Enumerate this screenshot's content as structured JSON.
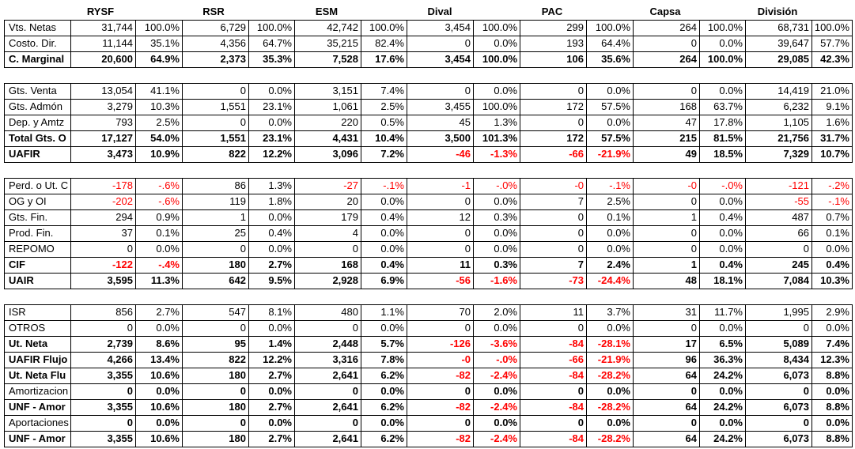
{
  "headers": [
    "RYSF",
    "RSR",
    "ESM",
    "Dival",
    "PAC",
    "Capsa",
    "División"
  ],
  "blocks": [
    {
      "rows": [
        {
          "label": "Vts. Netas",
          "bold": false,
          "values": [
            "31,744",
            "100.0%",
            "6,729",
            "100.0%",
            "42,742",
            "100.0%",
            "3,454",
            "100.0%",
            "299",
            "100.0%",
            "264",
            "100.0%",
            "68,731",
            "100.0%"
          ]
        },
        {
          "label": "Costo. Dir.",
          "bold": false,
          "values": [
            "11,144",
            "35.1%",
            "4,356",
            "64.7%",
            "35,215",
            "82.4%",
            "0",
            "0.0%",
            "193",
            "64.4%",
            "0",
            "0.0%",
            "39,647",
            "57.7%"
          ]
        },
        {
          "label": "C. Marginal",
          "bold": true,
          "values": [
            "20,600",
            "64.9%",
            "2,373",
            "35.3%",
            "7,528",
            "17.6%",
            "3,454",
            "100.0%",
            "106",
            "35.6%",
            "264",
            "100.0%",
            "29,085",
            "42.3%"
          ]
        }
      ]
    },
    {
      "rows": [
        {
          "label": "Gts. Venta",
          "bold": false,
          "values": [
            "13,054",
            "41.1%",
            "0",
            "0.0%",
            "3,151",
            "7.4%",
            "0",
            "0.0%",
            "0",
            "0.0%",
            "0",
            "0.0%",
            "14,419",
            "21.0%"
          ]
        },
        {
          "label": "Gts. Admón",
          "bold": false,
          "values": [
            "3,279",
            "10.3%",
            "1,551",
            "23.1%",
            "1,061",
            "2.5%",
            "3,455",
            "100.0%",
            "172",
            "57.5%",
            "168",
            "63.7%",
            "6,232",
            "9.1%"
          ]
        },
        {
          "label": "Dep. y Amtz",
          "bold": false,
          "values": [
            "793",
            "2.5%",
            "0",
            "0.0%",
            "220",
            "0.5%",
            "45",
            "1.3%",
            "0",
            "0.0%",
            "47",
            "17.8%",
            "1,105",
            "1.6%"
          ]
        },
        {
          "label": "Total Gts. O",
          "bold": true,
          "values": [
            "17,127",
            "54.0%",
            "1,551",
            "23.1%",
            "4,431",
            "10.4%",
            "3,500",
            "101.3%",
            "172",
            "57.5%",
            "215",
            "81.5%",
            "21,756",
            "31.7%"
          ]
        },
        {
          "label": "UAFIR",
          "bold": true,
          "values": [
            "3,473",
            "10.9%",
            "822",
            "12.2%",
            "3,096",
            "7.2%",
            "-46",
            "-1.3%",
            "-66",
            "-21.9%",
            "49",
            "18.5%",
            "7,329",
            "10.7%"
          ]
        }
      ]
    },
    {
      "rows": [
        {
          "label": "Perd. o Ut. C",
          "bold": false,
          "values": [
            "-178",
            "-.6%",
            "86",
            "1.3%",
            "-27",
            "-.1%",
            "-1",
            "-.0%",
            "-0",
            "-.1%",
            "-0",
            "-.0%",
            "-121",
            "-.2%"
          ]
        },
        {
          "label": "OG y OI",
          "bold": false,
          "values": [
            "-202",
            "-.6%",
            "119",
            "1.8%",
            "20",
            "0.0%",
            "0",
            "0.0%",
            "7",
            "2.5%",
            "0",
            "0.0%",
            "-55",
            "-.1%"
          ]
        },
        {
          "label": "Gts. Fin.",
          "bold": false,
          "values": [
            "294",
            "0.9%",
            "1",
            "0.0%",
            "179",
            "0.4%",
            "12",
            "0.3%",
            "0",
            "0.1%",
            "1",
            "0.4%",
            "487",
            "0.7%"
          ]
        },
        {
          "label": "Prod. Fin.",
          "bold": false,
          "values": [
            "37",
            "0.1%",
            "25",
            "0.4%",
            "4",
            "0.0%",
            "0",
            "0.0%",
            "0",
            "0.0%",
            "0",
            "0.0%",
            "66",
            "0.1%"
          ]
        },
        {
          "label": "REPOMO",
          "bold": false,
          "values": [
            "0",
            "0.0%",
            "0",
            "0.0%",
            "0",
            "0.0%",
            "0",
            "0.0%",
            "0",
            "0.0%",
            "0",
            "0.0%",
            "0",
            "0.0%"
          ]
        },
        {
          "label": "CIF",
          "bold": true,
          "values": [
            "-122",
            "-.4%",
            "180",
            "2.7%",
            "168",
            "0.4%",
            "11",
            "0.3%",
            "7",
            "2.4%",
            "1",
            "0.4%",
            "245",
            "0.4%"
          ]
        },
        {
          "label": "UAIR",
          "bold": true,
          "values": [
            "3,595",
            "11.3%",
            "642",
            "9.5%",
            "2,928",
            "6.9%",
            "-56",
            "-1.6%",
            "-73",
            "-24.4%",
            "48",
            "18.1%",
            "7,084",
            "10.3%"
          ]
        }
      ]
    },
    {
      "rows": [
        {
          "label": "ISR",
          "bold": false,
          "values": [
            "856",
            "2.7%",
            "547",
            "8.1%",
            "480",
            "1.1%",
            "70",
            "2.0%",
            "11",
            "3.7%",
            "31",
            "11.7%",
            "1,995",
            "2.9%"
          ]
        },
        {
          "label": "OTROS",
          "bold": false,
          "values": [
            "0",
            "0.0%",
            "0",
            "0.0%",
            "0",
            "0.0%",
            "0",
            "0.0%",
            "0",
            "0.0%",
            "0",
            "0.0%",
            "0",
            "0.0%"
          ]
        },
        {
          "label": "Ut. Neta",
          "bold": true,
          "values": [
            "2,739",
            "8.6%",
            "95",
            "1.4%",
            "2,448",
            "5.7%",
            "-126",
            "-3.6%",
            "-84",
            "-28.1%",
            "17",
            "6.5%",
            "5,089",
            "7.4%"
          ]
        },
        {
          "label": "UAFIR Flujo",
          "bold": true,
          "values": [
            "4,266",
            "13.4%",
            "822",
            "12.2%",
            "3,316",
            "7.8%",
            "-0",
            "-.0%",
            "-66",
            "-21.9%",
            "96",
            "36.3%",
            "8,434",
            "12.3%"
          ]
        },
        {
          "label": "Ut. Neta Flu",
          "bold": true,
          "values": [
            "3,355",
            "10.6%",
            "180",
            "2.7%",
            "2,641",
            "6.2%",
            "-82",
            "-2.4%",
            "-84",
            "-28.2%",
            "64",
            "24.2%",
            "6,073",
            "8.8%"
          ]
        },
        {
          "label": "Amortizacion",
          "bold": false,
          "values": [
            "0",
            "0.0%",
            "0",
            "0.0%",
            "0",
            "0.0%",
            "0",
            "0.0%",
            "0",
            "0.0%",
            "0",
            "0.0%",
            "0",
            "0.0%"
          ],
          "boldValues": true
        },
        {
          "label": "UNF - Amor",
          "bold": true,
          "values": [
            "3,355",
            "10.6%",
            "180",
            "2.7%",
            "2,641",
            "6.2%",
            "-82",
            "-2.4%",
            "-84",
            "-28.2%",
            "64",
            "24.2%",
            "6,073",
            "8.8%"
          ]
        },
        {
          "label": "Aportaciones",
          "bold": false,
          "values": [
            "0",
            "0.0%",
            "0",
            "0.0%",
            "0",
            "0.0%",
            "0",
            "0.0%",
            "0",
            "0.0%",
            "0",
            "0.0%",
            "0",
            "0.0%"
          ],
          "boldValues": true
        },
        {
          "label": "UNF - Amor",
          "bold": true,
          "values": [
            "3,355",
            "10.6%",
            "180",
            "2.7%",
            "2,641",
            "6.2%",
            "-82",
            "-2.4%",
            "-84",
            "-28.2%",
            "64",
            "24.2%",
            "6,073",
            "8.8%"
          ]
        }
      ]
    }
  ],
  "colors": {
    "negative": "#ff0000",
    "text": "#000000",
    "grid": "#000000"
  }
}
